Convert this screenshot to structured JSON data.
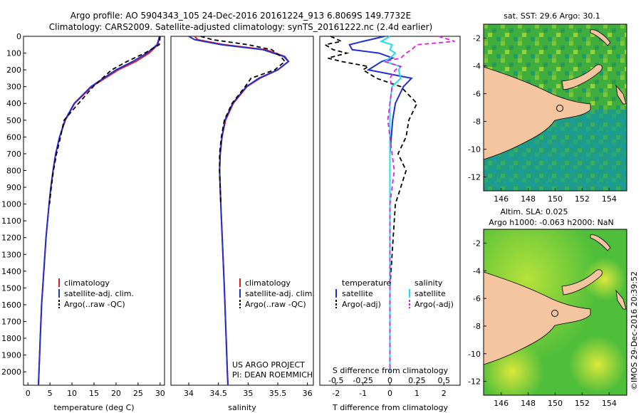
{
  "header": {
    "line1": "Argo profile: AO 5904343_105 24-Dec-2016 20161224_913 6.8069S 149.7732E",
    "line2": "Climatology: CARS2009. Satellite-adjusted climatology: synTS_20161222.nc (2.4d earlier)"
  },
  "colors": {
    "climatology": "#e41a1c",
    "satellite": "#1f2fd0",
    "argo": "#000000",
    "salinity_sat": "#22dde8",
    "salinity_argo": "#e020e0",
    "land": "#f5c5a0"
  },
  "chart_data": [
    {
      "type": "line",
      "name": "temperature",
      "xlabel": "temperature (deg C)",
      "ylabel": "",
      "xlim": [
        -1,
        31
      ],
      "ylim": [
        2080,
        0
      ],
      "xticks": [
        0,
        5,
        10,
        15,
        20,
        25,
        30
      ],
      "yticks": [
        0,
        100,
        200,
        300,
        400,
        500,
        600,
        700,
        800,
        900,
        1000,
        1100,
        1200,
        1300,
        1400,
        1500,
        1600,
        1700,
        1800,
        1900,
        2000
      ],
      "legend": [
        "climatology",
        "satellite-adj. clim.",
        "Argo(..raw -QC)"
      ],
      "depth": [
        0,
        50,
        100,
        150,
        200,
        300,
        400,
        500,
        600,
        700,
        800,
        900,
        1000,
        1200,
        1400,
        1600,
        1800,
        2000,
        2080
      ],
      "series": [
        {
          "name": "climatology",
          "values": [
            29.8,
            29.5,
            27.5,
            24.5,
            20.5,
            14.5,
            10.6,
            8.5,
            7.2,
            6.3,
            5.7,
            5.2,
            4.8,
            4.1,
            3.6,
            3.1,
            2.8,
            2.5,
            2.4
          ]
        },
        {
          "name": "satellite-adj. clim.",
          "values": [
            29.9,
            29.3,
            27.0,
            23.8,
            20.0,
            14.3,
            10.5,
            8.4,
            7.2,
            6.3,
            5.7,
            5.2,
            4.8,
            4.1,
            3.6,
            3.1,
            2.8,
            2.5,
            2.4
          ]
        },
        {
          "name": "Argo(..raw -QC)",
          "values": [
            30.0,
            29.8,
            26.5,
            22.5,
            19.0,
            14.8,
            11.5,
            8.2,
            7.4,
            6.5,
            5.8,
            5.3,
            4.9,
            null,
            null,
            null,
            null,
            null,
            null
          ]
        }
      ]
    },
    {
      "type": "line",
      "name": "salinity",
      "xlabel": "salinity",
      "xlim": [
        33.7,
        36.1
      ],
      "ylim": [
        2080,
        0
      ],
      "xticks": [
        34,
        34.5,
        35,
        35.5,
        36
      ],
      "xticklabels": [
        "34",
        "34.5",
        "35",
        "35.5",
        "36"
      ],
      "legend": [
        "climatology",
        "satellite-adj. clim.",
        "Argo(..raw -QC)"
      ],
      "depth": [
        0,
        20,
        50,
        80,
        120,
        150,
        200,
        250,
        300,
        400,
        500,
        600,
        700,
        800,
        1000,
        1500,
        2000,
        2080
      ],
      "series": [
        {
          "name": "climatology",
          "values": [
            34.1,
            34.15,
            34.6,
            35.3,
            35.62,
            35.68,
            35.5,
            35.2,
            34.98,
            34.75,
            34.62,
            34.56,
            34.53,
            34.52,
            34.54,
            34.6,
            34.65,
            34.66
          ]
        },
        {
          "name": "satellite-adj. clim.",
          "values": [
            34.0,
            34.1,
            34.55,
            35.25,
            35.6,
            35.68,
            35.5,
            35.18,
            34.97,
            34.74,
            34.61,
            34.56,
            34.53,
            34.52,
            34.54,
            34.6,
            34.65,
            34.66
          ]
        },
        {
          "name": "Argo(..raw -QC)",
          "values": [
            34.2,
            34.4,
            35.0,
            35.4,
            35.55,
            35.62,
            35.45,
            35.05,
            34.95,
            34.73,
            34.6,
            34.55,
            34.52,
            34.52,
            34.54,
            null,
            null,
            null
          ]
        }
      ],
      "annotation": [
        "US ARGO PROJECT",
        "PI: DEAN ROEMMICH"
      ]
    },
    {
      "type": "line",
      "name": "difference",
      "xlabel_top": "S difference from climatology",
      "xlabel_bottom": "T difference from climatology",
      "s_ticks": [
        "-0.5",
        "-0.25",
        "0",
        "0.25",
        "0.5"
      ],
      "s_tick_values": [
        -0.5,
        -0.25,
        0,
        0.25,
        0.5
      ],
      "t_ticks": [
        "-2",
        "-1",
        "0",
        "1",
        "2"
      ],
      "t_tick_values": [
        -2,
        -1,
        0,
        1,
        2
      ],
      "t_lim": [
        -2.6,
        2.6
      ],
      "ylim": [
        2080,
        0
      ],
      "legend_temperature": [
        "temperature",
        "satellite",
        "Argo(-adj)"
      ],
      "legend_salinity": [
        "salinity",
        "satellite",
        "Argo(-adj)"
      ],
      "depth": [
        0,
        30,
        50,
        80,
        100,
        130,
        150,
        180,
        200,
        250,
        300,
        400,
        500,
        600,
        700,
        800,
        1000,
        1500,
        2000
      ],
      "series": [
        {
          "name": "T satellite",
          "values": [
            -0.2,
            -1.0,
            -1.5,
            -1.4,
            -0.4,
            0.1,
            -0.3,
            -0.6,
            -0.8,
            0.8,
            0.5,
            0.2,
            0.1,
            0.05,
            0.0,
            0.0,
            0.0,
            0.0,
            0.0
          ]
        },
        {
          "name": "T Argo(-adj)",
          "values": [
            -2.2,
            -1.8,
            -2.4,
            -2.1,
            -1.6,
            -2.3,
            -1.8,
            -0.8,
            -1.0,
            -0.5,
            0.4,
            1.0,
            0.7,
            0.6,
            0.3,
            0.6,
            0.2,
            0.0,
            0.0
          ]
        },
        {
          "name": "S satellite",
          "values": [
            0.0,
            -0.08,
            0.02,
            0.0,
            0.05,
            0.0,
            -0.05,
            0.1,
            0.08,
            0.1,
            0.02,
            0.0,
            0.0,
            0.0,
            0.0,
            0.0,
            0.0,
            0.0,
            0.0
          ]
        },
        {
          "name": "S Argo(-adj)",
          "values": [
            0.45,
            0.6,
            0.25,
            0.2,
            0.15,
            0.1,
            -0.05,
            0.1,
            0.05,
            0.0,
            0.02,
            0.0,
            -0.02,
            0.0,
            0.02,
            0.04,
            0.0,
            0.0,
            0.0
          ]
        }
      ]
    },
    {
      "type": "heatmap",
      "name": "sst-map",
      "title": "sat. SST: 29.6 Argo: 30.1",
      "xticks": [
        "146",
        "148",
        "150",
        "152",
        "154"
      ],
      "yticks": [
        "-2",
        "-4",
        "-6",
        "-8",
        "-10",
        "-12"
      ],
      "xlim": [
        144.7,
        155.3
      ],
      "ylim": [
        -13,
        -1
      ],
      "argo_position": [
        149.77,
        -6.81
      ]
    },
    {
      "type": "heatmap",
      "name": "sla-map",
      "title_line1": "Altim. SLA: 0.025",
      "title_line2": "Argo h1000: -0.063 h2000: NaN",
      "xticks": [
        "146",
        "148",
        "150",
        "152",
        "154"
      ],
      "yticks": [
        "-2",
        "-4",
        "-6",
        "-8",
        "-10",
        "-12"
      ],
      "xlim": [
        144.7,
        155.3
      ],
      "ylim": [
        -13,
        -1
      ],
      "argo_position": [
        149.77,
        -6.81
      ]
    }
  ],
  "footer": {
    "credit": "©IMOS 29-Dec-2016 20:39:52"
  }
}
